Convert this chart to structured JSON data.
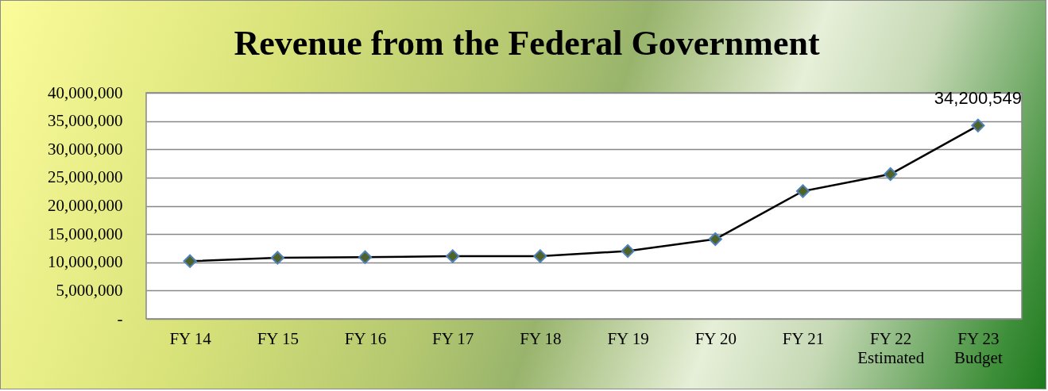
{
  "chart_data": {
    "type": "line",
    "title": "Revenue from the Federal Government",
    "categories": [
      "FY 14",
      "FY 15",
      "FY 16",
      "FY 17",
      "FY 18",
      "FY 19",
      "FY 20",
      "FY 21",
      "FY 22\nEstimated",
      "FY 23\nBudget"
    ],
    "series": [
      {
        "color": "#000000",
        "values": [
          10200000,
          10800000,
          10900000,
          11100000,
          11100000,
          12000000,
          14100000,
          22600000,
          25600000,
          34200549
        ],
        "value_labels": [
          null,
          null,
          null,
          null,
          null,
          null,
          null,
          null,
          null,
          "34,200,549"
        ]
      }
    ],
    "ylim": [
      0,
      40000000
    ],
    "yticks": [
      {
        "value": 0,
        "label": "-"
      },
      {
        "value": 5000000,
        "label": "5,000,000"
      },
      {
        "value": 10000000,
        "label": "10,000,000"
      },
      {
        "value": 15000000,
        "label": "15,000,000"
      },
      {
        "value": 20000000,
        "label": "20,000,000"
      },
      {
        "value": 25000000,
        "label": "25,000,000"
      },
      {
        "value": 30000000,
        "label": "30,000,000"
      },
      {
        "value": 35000000,
        "label": "35,000,000"
      },
      {
        "value": 40000000,
        "label": "40,000,000"
      }
    ],
    "grid": "y",
    "legend": false,
    "marker": "diamond",
    "line_style": "solid"
  }
}
